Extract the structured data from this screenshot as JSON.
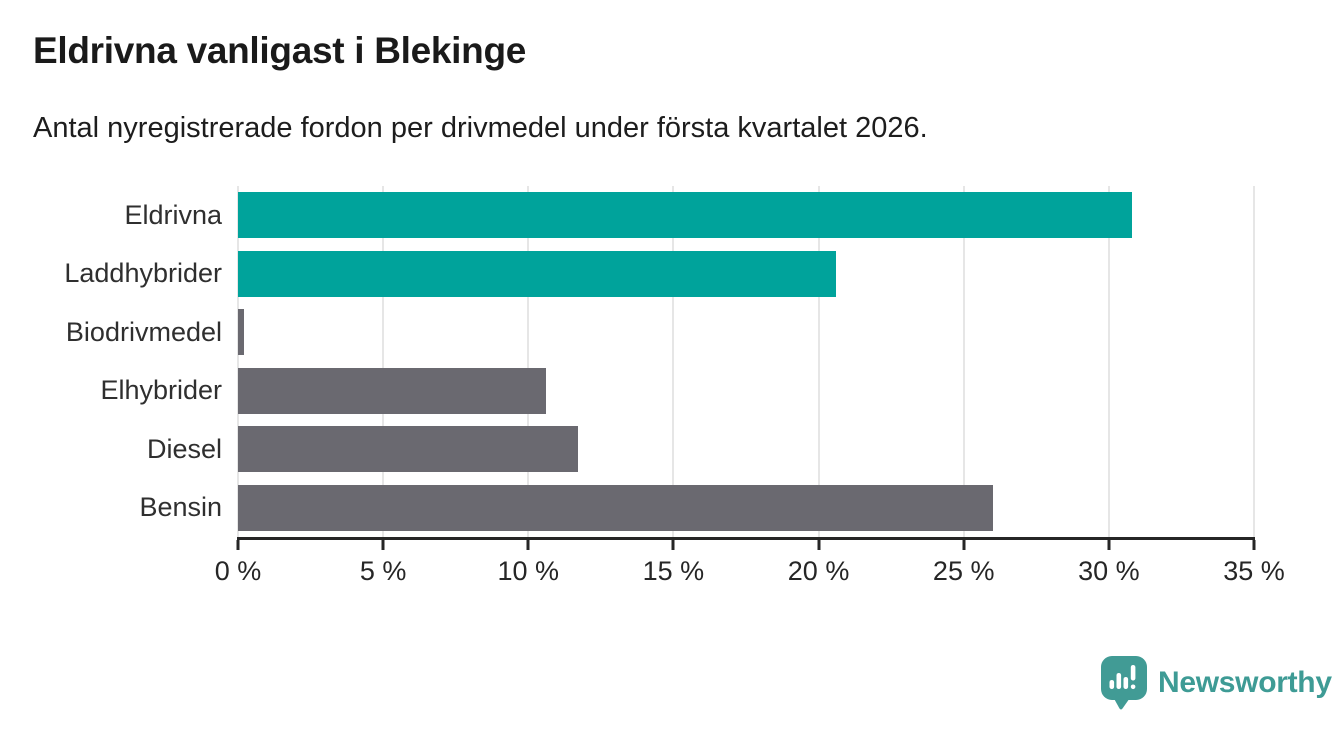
{
  "header": {
    "title": "Eldrivna vanligast i Blekinge",
    "subtitle": "Antal nyregistrerade fordon per drivmedel under första kvartalet 2026."
  },
  "chart_data": {
    "type": "bar",
    "orientation": "horizontal",
    "title": "Eldrivna vanligast i Blekinge",
    "subtitle": "Antal nyregistrerade fordon per drivmedel under första kvartalet 2026.",
    "categories": [
      "Eldrivna",
      "Laddhybrider",
      "Biodrivmedel",
      "Elhybrider",
      "Diesel",
      "Bensin"
    ],
    "values": [
      30.8,
      20.6,
      0.2,
      10.6,
      11.7,
      26.0
    ],
    "unit": "%",
    "xlabel": "",
    "ylabel": "",
    "xlim": [
      0,
      35
    ],
    "x_ticks": [
      0,
      5,
      10,
      15,
      20,
      25,
      30,
      35
    ],
    "x_tick_labels": [
      "0 %",
      "5 %",
      "10 %",
      "15 %",
      "20 %",
      "25 %",
      "30 %",
      "35 %"
    ],
    "grid": true,
    "legend": "none",
    "highlighted": [
      true,
      true,
      false,
      false,
      false,
      false
    ],
    "colors": {
      "highlight": "#00a39b",
      "default": "#6a6970"
    }
  },
  "footer": {
    "brand": "Newsworthy",
    "brand_color": "#3e9b95",
    "logo_icon": "newsworthy-pin-barchart-icon"
  }
}
